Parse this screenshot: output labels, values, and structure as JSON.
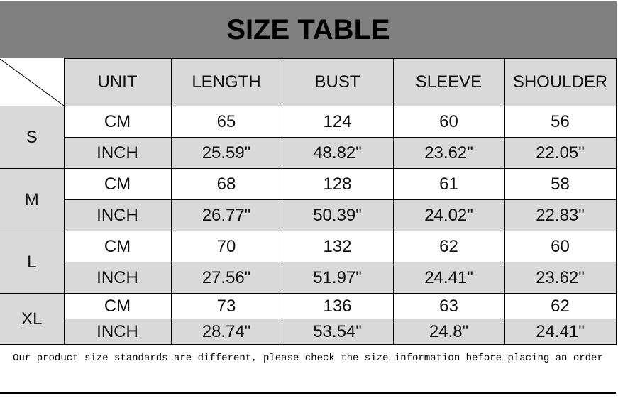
{
  "title": "SIZE TABLE",
  "headers": [
    "UNIT",
    "LENGTH",
    "BUST",
    "SLEEVE",
    "SHOULDER"
  ],
  "sizes": [
    {
      "size": "S",
      "cm": {
        "unit": "CM",
        "values": [
          "65",
          "124",
          "60",
          "56"
        ]
      },
      "inch": {
        "unit": "INCH",
        "values": [
          "25.59\"",
          "48.82\"",
          "23.62\"",
          "22.05\""
        ]
      }
    },
    {
      "size": "M",
      "cm": {
        "unit": "CM",
        "values": [
          "68",
          "128",
          "61",
          "58"
        ]
      },
      "inch": {
        "unit": "INCH",
        "values": [
          "26.77\"",
          "50.39\"",
          "24.02\"",
          "22.83\""
        ]
      }
    },
    {
      "size": "L",
      "cm": {
        "unit": "CM",
        "values": [
          "70",
          "132",
          "62",
          "60"
        ]
      },
      "inch": {
        "unit": "INCH",
        "values": [
          "27.56\"",
          "51.97\"",
          "24.41\"",
          "23.62\""
        ]
      }
    },
    {
      "size": "XL",
      "cm": {
        "unit": "CM",
        "values": [
          "73",
          "136",
          "63",
          "62"
        ]
      },
      "inch": {
        "unit": "INCH",
        "values": [
          "28.74\"",
          "53.54\"",
          "24.8\"",
          "24.41\""
        ]
      }
    }
  ],
  "footer": "Our product size standards are different, please check the size information before placing an order",
  "colors": {
    "title_band": "#808080",
    "header_fill": "#d9d9d9",
    "inch_row_fill": "#d9d9d9"
  }
}
